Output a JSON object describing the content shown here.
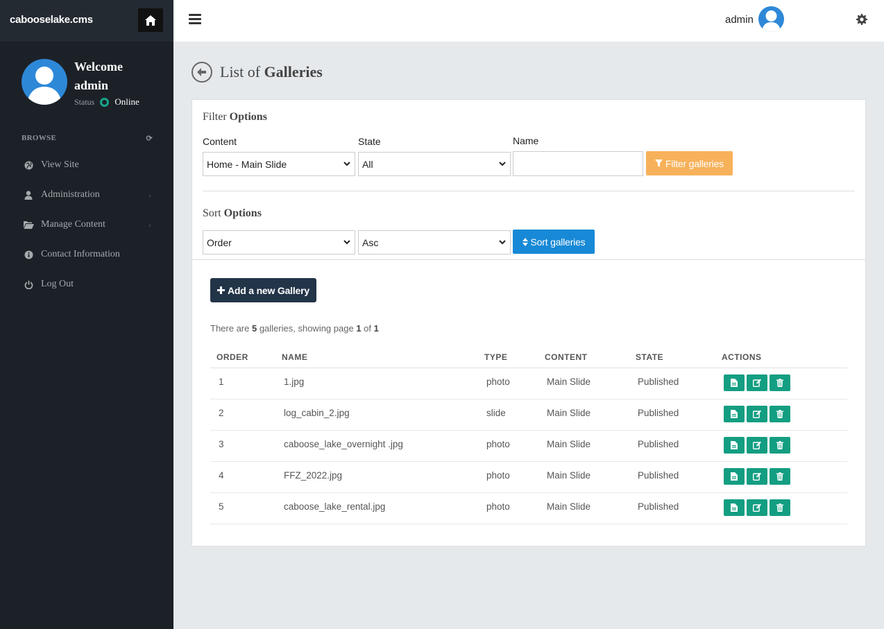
{
  "app": {
    "brand": "cabooselake.cms"
  },
  "user_panel": {
    "welcome": "Welcome",
    "name": "admin",
    "status_label": "Status",
    "status_value": "Online",
    "status_color": "#17a589"
  },
  "sidebar": {
    "section": "BROWSE",
    "items": [
      {
        "label": "View Site",
        "icon": "globe-icon"
      },
      {
        "label": "Administration",
        "icon": "user-icon",
        "caret": "‹"
      },
      {
        "label": "Manage Content",
        "icon": "folder-open-icon",
        "caret": "‹"
      },
      {
        "label": "Contact Information",
        "icon": "info-icon"
      },
      {
        "label": "Log Out",
        "icon": "power-icon"
      }
    ]
  },
  "topbar": {
    "username": "admin"
  },
  "page": {
    "title_prefix": "List of ",
    "title_bold": "Galleries"
  },
  "filter": {
    "title_prefix": "Filter ",
    "title_bold": "Options",
    "content_label": "Content",
    "content_value": "Home - Main Slide",
    "state_label": "State",
    "state_value": "All",
    "name_label": "Name",
    "name_value": "",
    "button": "Filter galleries"
  },
  "sort": {
    "title_prefix": "Sort ",
    "title_bold": "Options",
    "field_value": "Order",
    "direction_value": "Asc",
    "button": "Sort galleries"
  },
  "add_button": "Add a new Gallery",
  "summary": {
    "pre": "There are ",
    "count": "5",
    "mid": " galleries, showing page ",
    "page": "1",
    "of": " of ",
    "pages": "1"
  },
  "table": {
    "headers": [
      "ORDER",
      "NAME",
      "TYPE",
      "CONTENT",
      "STATE",
      "ACTIONS"
    ],
    "rows": [
      {
        "order": "1",
        "name": "1.jpg",
        "type": "photo",
        "content": "Main Slide",
        "state": "Published"
      },
      {
        "order": "2",
        "name": "log_cabin_2.jpg",
        "type": "slide",
        "content": "Main Slide",
        "state": "Published"
      },
      {
        "order": "3",
        "name": "caboose_lake_overnight .jpg",
        "type": "photo",
        "content": "Main Slide",
        "state": "Published"
      },
      {
        "order": "4",
        "name": "FFZ_2022.jpg",
        "type": "photo",
        "content": "Main Slide",
        "state": "Published"
      },
      {
        "order": "5",
        "name": "caboose_lake_rental.jpg",
        "type": "photo",
        "content": "Main Slide",
        "state": "Published"
      }
    ]
  },
  "colors": {
    "sidebar": "#1c2128",
    "accent_teal": "#139e82",
    "filter_orange": "#f7b15a",
    "sort_blue": "#1789d6",
    "add_dark": "#223448"
  }
}
